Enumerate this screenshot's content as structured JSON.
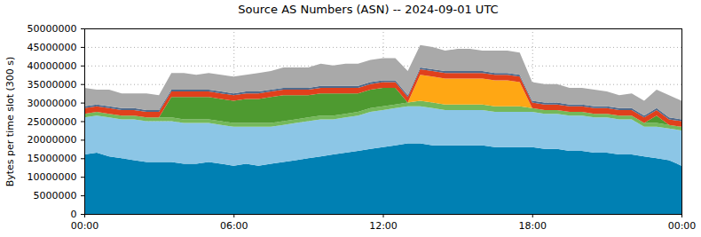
{
  "chart_data": {
    "type": "area",
    "title": "Source AS Numbers (ASN) -- 2024-09-01 UTC",
    "y_label": "Bytes per time slot (300 s)",
    "stacked": true,
    "grid": true,
    "x": [
      0,
      0.5,
      1,
      1.5,
      2,
      2.5,
      3,
      3.5,
      4,
      4.5,
      5,
      5.5,
      6,
      6.5,
      7,
      7.5,
      8,
      8.5,
      9,
      9.5,
      10,
      10.5,
      11,
      11.5,
      12,
      12.5,
      13,
      13.5,
      14,
      14.5,
      15,
      15.5,
      16,
      16.5,
      17,
      17.5,
      18,
      18.5,
      19,
      19.5,
      20,
      20.5,
      21,
      21.5,
      22,
      22.5,
      23,
      23.5,
      24
    ],
    "xlim": [
      0,
      24
    ],
    "xticks": [
      {
        "value": 0,
        "label": "00:00"
      },
      {
        "value": 6,
        "label": "06:00"
      },
      {
        "value": 12,
        "label": "12:00"
      },
      {
        "value": 18,
        "label": "18:00"
      },
      {
        "value": 24,
        "label": "00:00"
      }
    ],
    "ylim": [
      0,
      50000000
    ],
    "yticks": [
      0,
      5000000,
      10000000,
      15000000,
      20000000,
      25000000,
      30000000,
      35000000,
      40000000,
      45000000,
      50000000
    ],
    "series": [
      {
        "color": "#0080b3",
        "values": [
          16000000,
          16500000,
          15500000,
          15000000,
          14500000,
          14000000,
          14000000,
          14000000,
          13500000,
          13500000,
          14000000,
          13500000,
          13000000,
          13500000,
          13000000,
          13500000,
          14000000,
          14500000,
          15000000,
          15500000,
          16000000,
          16500000,
          17000000,
          17500000,
          18000000,
          18500000,
          19000000,
          19000000,
          18500000,
          18500000,
          18500000,
          18500000,
          18500000,
          18000000,
          18000000,
          18000000,
          18000000,
          17500000,
          17500000,
          17000000,
          17000000,
          16500000,
          16500000,
          16000000,
          16000000,
          15500000,
          15000000,
          14500000,
          13000000
        ]
      },
      {
        "color": "#8cc6e6",
        "values": [
          10000000,
          10000000,
          10500000,
          10500000,
          11000000,
          11000000,
          11000000,
          11000000,
          11000000,
          11000000,
          10500000,
          10500000,
          10500000,
          10000000,
          10500000,
          10000000,
          10000000,
          10000000,
          10000000,
          10000000,
          9500000,
          9500000,
          9500000,
          10000000,
          10000000,
          10000000,
          10000000,
          10000000,
          10000000,
          9500000,
          9500000,
          9500000,
          9500000,
          9500000,
          9500000,
          9500000,
          9500000,
          9500000,
          9500000,
          9500000,
          9500000,
          9500000,
          9500000,
          9500000,
          9500000,
          8000000,
          8500000,
          8500000,
          9500000
        ]
      },
      {
        "color": "#74b85a",
        "values": [
          1000000,
          1000000,
          1000000,
          1000000,
          1000000,
          1000000,
          1000000,
          1000000,
          1000000,
          1000000,
          1000000,
          1000000,
          1000000,
          1000000,
          1000000,
          1000000,
          1000000,
          1000000,
          1000000,
          1000000,
          1000000,
          1000000,
          1000000,
          1000000,
          1000000,
          1000000,
          1000000,
          1500000,
          1500000,
          1500000,
          1500000,
          1500000,
          1500000,
          1500000,
          1500000,
          1500000,
          1000000,
          1000000,
          1000000,
          1000000,
          1000000,
          1000000,
          1000000,
          1000000,
          1000000,
          1000000,
          1000000,
          1000000,
          1000000
        ]
      },
      {
        "color": "#4e9a30",
        "values": [
          0,
          0,
          0,
          0,
          0,
          0,
          0,
          5500000,
          6000000,
          6000000,
          6000000,
          6000000,
          6000000,
          6500000,
          6500000,
          7000000,
          7000000,
          6500000,
          6000000,
          6000000,
          6000000,
          5500000,
          5000000,
          5000000,
          5000000,
          4500000,
          0,
          0,
          0,
          0,
          0,
          0,
          0,
          0,
          0,
          0,
          0,
          0,
          0,
          0,
          0,
          0,
          0,
          0,
          0,
          0,
          2000000,
          0,
          0
        ]
      },
      {
        "color": "#ffa714",
        "values": [
          0,
          0,
          0,
          0,
          0,
          0,
          0,
          0,
          0,
          0,
          0,
          0,
          0,
          0,
          0,
          0,
          0,
          0,
          0,
          0,
          0,
          0,
          0,
          0,
          0,
          0,
          0,
          7000000,
          7000000,
          7000000,
          7000000,
          7000000,
          7000000,
          7000000,
          7000000,
          6500000,
          0,
          0,
          0,
          0,
          0,
          0,
          0,
          0,
          0,
          0,
          0,
          0,
          0
        ]
      },
      {
        "color": "#e0401c",
        "values": [
          1500000,
          1500000,
          1500000,
          1500000,
          1500000,
          1500000,
          1500000,
          1500000,
          1500000,
          1500000,
          1500000,
          1500000,
          1500000,
          1500000,
          1500000,
          1500000,
          1500000,
          1500000,
          1500000,
          1500000,
          1500000,
          1500000,
          1500000,
          1500000,
          1500000,
          1500000,
          1500000,
          1500000,
          1500000,
          1500000,
          1500000,
          1500000,
          1500000,
          1500000,
          1500000,
          1500000,
          1500000,
          1500000,
          1500000,
          1500000,
          1500000,
          1500000,
          1500000,
          1500000,
          1500000,
          1500000,
          1500000,
          1500000,
          1500000
        ]
      },
      {
        "color": "#4f6a8c",
        "values": [
          500000,
          500000,
          500000,
          500000,
          500000,
          500000,
          500000,
          500000,
          500000,
          500000,
          500000,
          500000,
          500000,
          500000,
          500000,
          500000,
          500000,
          500000,
          500000,
          500000,
          500000,
          500000,
          500000,
          500000,
          500000,
          500000,
          500000,
          500000,
          500000,
          500000,
          500000,
          500000,
          500000,
          500000,
          500000,
          500000,
          500000,
          500000,
          500000,
          500000,
          500000,
          500000,
          500000,
          500000,
          500000,
          500000,
          500000,
          500000,
          500000
        ]
      },
      {
        "color": "#a9a9a9",
        "values": [
          5000000,
          4000000,
          4500000,
          4000000,
          4000000,
          4500000,
          4000000,
          4500000,
          4500000,
          4000000,
          4500000,
          4500000,
          4500000,
          4500000,
          5000000,
          5000000,
          5500000,
          5500000,
          5500000,
          6000000,
          5500000,
          6000000,
          6000000,
          6000000,
          6000000,
          6000000,
          6500000,
          6000000,
          6000000,
          5500000,
          6000000,
          6000000,
          5500000,
          6000000,
          6000000,
          6000000,
          5000000,
          5000000,
          5000000,
          4500000,
          4500000,
          4500000,
          4000000,
          3500000,
          4000000,
          4000000,
          5000000,
          6000000,
          5000000
        ]
      }
    ]
  }
}
